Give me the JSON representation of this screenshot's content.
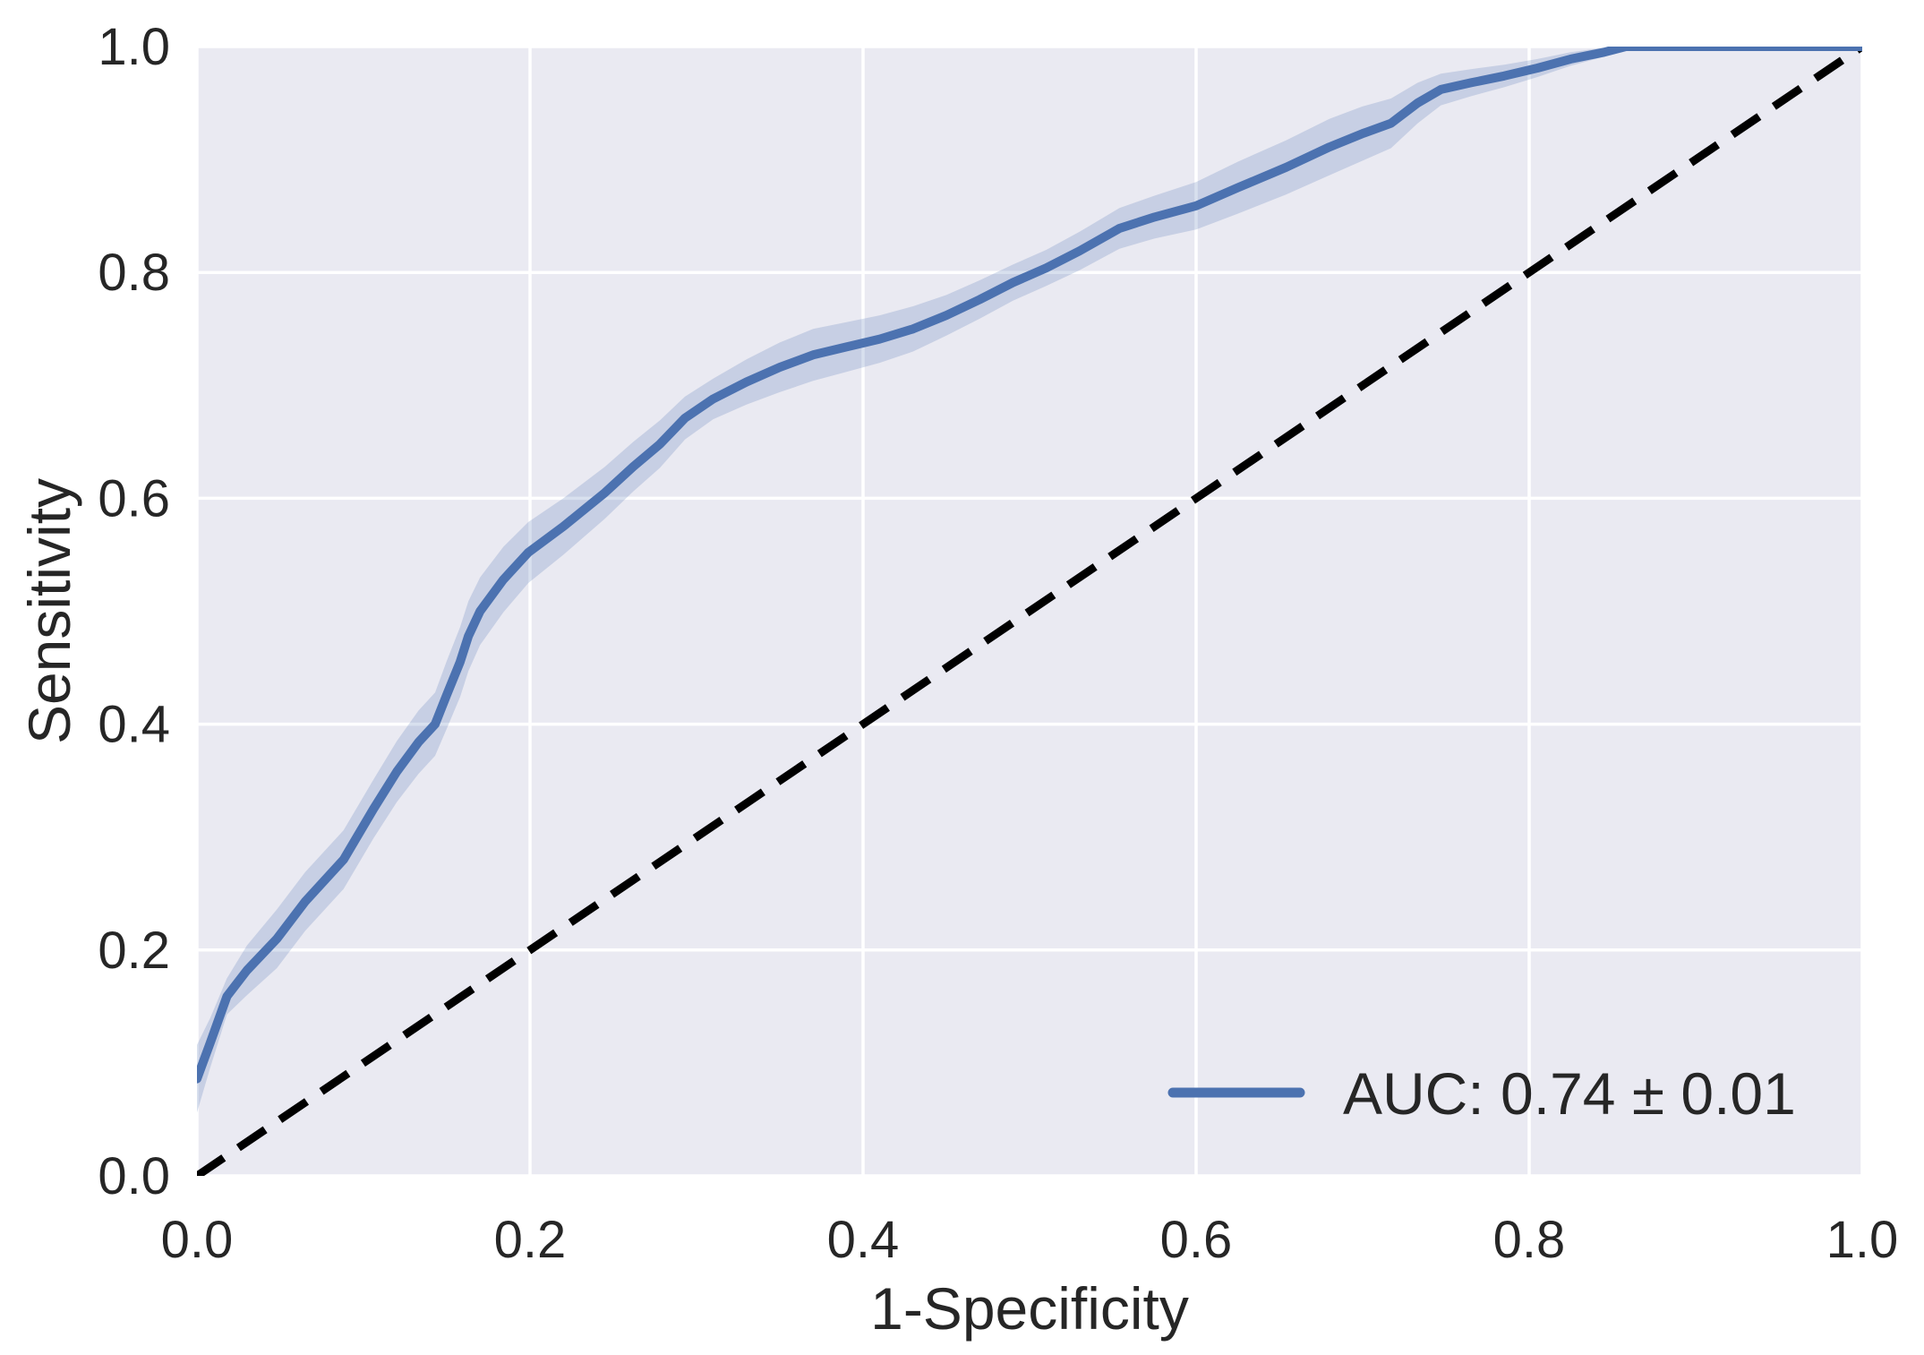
{
  "chart_data": {
    "type": "line",
    "title": "",
    "xlabel": "1-Specificity",
    "ylabel": "Sensitivity",
    "xlim": [
      0,
      1
    ],
    "ylim": [
      0,
      1
    ],
    "grid": true,
    "xticks": {
      "values": [
        0.0,
        0.2,
        0.4,
        0.6,
        0.8,
        1.0
      ],
      "labels": [
        "0.0",
        "0.2",
        "0.4",
        "0.6",
        "0.8",
        "1.0"
      ]
    },
    "yticks": {
      "values": [
        0.0,
        0.2,
        0.4,
        0.6,
        0.8,
        1.0
      ],
      "labels": [
        "0.0",
        "0.2",
        "0.4",
        "0.6",
        "0.8",
        "1.0"
      ]
    },
    "styles": {
      "plot_bg": "#eaeaf2",
      "grid_color": "#ffffff",
      "text_color": "#262626",
      "roc_color": "#4c72b0",
      "band_color": "#4c72b0",
      "band_opacity": 0.22,
      "chance_color": "#000000"
    },
    "legend": {
      "position": "lower right",
      "entries": [
        {
          "label": "AUC: 0.74 ± 0.01",
          "color": "#4c72b0"
        }
      ]
    },
    "series": [
      {
        "name": "mean ROC curve with confidence band",
        "kind": "line_with_band",
        "points_xyhw": [
          [
            0.0,
            0.086,
            0.03
          ],
          [
            0.008,
            0.118,
            0.022
          ],
          [
            0.018,
            0.159,
            0.016
          ],
          [
            0.03,
            0.182,
            0.022
          ],
          [
            0.048,
            0.21,
            0.026
          ],
          [
            0.065,
            0.243,
            0.026
          ],
          [
            0.088,
            0.28,
            0.026
          ],
          [
            0.106,
            0.325,
            0.026
          ],
          [
            0.12,
            0.358,
            0.027
          ],
          [
            0.133,
            0.384,
            0.028
          ],
          [
            0.143,
            0.4,
            0.028
          ],
          [
            0.15,
            0.426,
            0.03
          ],
          [
            0.158,
            0.455,
            0.031
          ],
          [
            0.163,
            0.478,
            0.031
          ],
          [
            0.17,
            0.5,
            0.03
          ],
          [
            0.184,
            0.528,
            0.029
          ],
          [
            0.199,
            0.552,
            0.027
          ],
          [
            0.22,
            0.575,
            0.025
          ],
          [
            0.245,
            0.605,
            0.023
          ],
          [
            0.262,
            0.628,
            0.022
          ],
          [
            0.278,
            0.648,
            0.021
          ],
          [
            0.293,
            0.671,
            0.019
          ],
          [
            0.31,
            0.688,
            0.018
          ],
          [
            0.33,
            0.703,
            0.02
          ],
          [
            0.35,
            0.716,
            0.022
          ],
          [
            0.37,
            0.727,
            0.023
          ],
          [
            0.39,
            0.734,
            0.022
          ],
          [
            0.41,
            0.741,
            0.021
          ],
          [
            0.43,
            0.75,
            0.02
          ],
          [
            0.45,
            0.762,
            0.018
          ],
          [
            0.47,
            0.776,
            0.017
          ],
          [
            0.49,
            0.791,
            0.016
          ],
          [
            0.51,
            0.804,
            0.016
          ],
          [
            0.53,
            0.819,
            0.017
          ],
          [
            0.554,
            0.839,
            0.018
          ],
          [
            0.575,
            0.849,
            0.019
          ],
          [
            0.6,
            0.859,
            0.021
          ],
          [
            0.625,
            0.875,
            0.023
          ],
          [
            0.654,
            0.893,
            0.024
          ],
          [
            0.68,
            0.911,
            0.025
          ],
          [
            0.7,
            0.923,
            0.024
          ],
          [
            0.717,
            0.932,
            0.022
          ],
          [
            0.733,
            0.95,
            0.018
          ],
          [
            0.747,
            0.962,
            0.014
          ],
          [
            0.765,
            0.968,
            0.012
          ],
          [
            0.785,
            0.974,
            0.01
          ],
          [
            0.805,
            0.981,
            0.008
          ],
          [
            0.825,
            0.989,
            0.006
          ],
          [
            0.845,
            0.995,
            0.004
          ],
          [
            0.858,
            1.0,
            0.0
          ],
          [
            1.0,
            1.0,
            0.0
          ]
        ]
      },
      {
        "name": "chance diagonal",
        "kind": "dashed_line",
        "points": [
          [
            0,
            0
          ],
          [
            1,
            1
          ]
        ]
      }
    ]
  }
}
